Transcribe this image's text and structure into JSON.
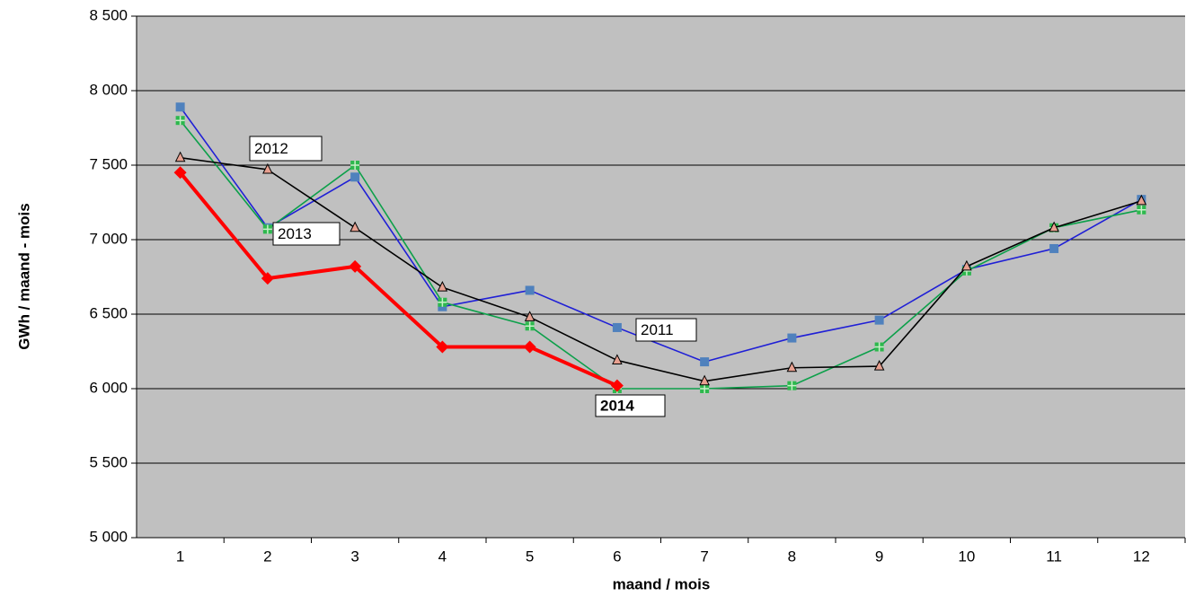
{
  "chart_data": {
    "type": "line",
    "x_label": "maand / mois",
    "y_label": "GWh / maand - mois",
    "categories": [
      "1",
      "2",
      "3",
      "4",
      "5",
      "6",
      "7",
      "8",
      "9",
      "10",
      "11",
      "12"
    ],
    "series": [
      {
        "name": "2011",
        "color": "#1f1fd6",
        "marker": "square",
        "marker_color": "#4f81bd",
        "values": [
          7890,
          7080,
          7420,
          6550,
          6660,
          6410,
          6180,
          6340,
          6460,
          6800,
          6940,
          7270
        ]
      },
      {
        "name": "2012",
        "color": "#000000",
        "marker": "triangle",
        "marker_color": "#e8a090",
        "values": [
          7550,
          7470,
          7080,
          6680,
          6480,
          6190,
          6050,
          6140,
          6150,
          6820,
          7080,
          7260
        ]
      },
      {
        "name": "2013",
        "color": "#0ca04a",
        "marker": "plus-square",
        "marker_color": "#2eb84e",
        "values": [
          7800,
          7070,
          7500,
          6580,
          6420,
          6000,
          6000,
          6020,
          6280,
          6790,
          7080,
          7200
        ]
      },
      {
        "name": "2014",
        "color": "#ff0000",
        "marker": "diamond",
        "marker_color": "#ff0000",
        "values": [
          7450,
          6740,
          6820,
          6280,
          6280,
          6020,
          null,
          null,
          null,
          null,
          null,
          null
        ]
      }
    ],
    "ylim": [
      5000,
      8500
    ],
    "yticks": [
      {
        "value": 5000,
        "label": "5 000"
      },
      {
        "value": 5500,
        "label": "5 500"
      },
      {
        "value": 6000,
        "label": "6 000"
      },
      {
        "value": 6500,
        "label": "6 500"
      },
      {
        "value": 7000,
        "label": "7 000"
      },
      {
        "value": 7500,
        "label": "7 500"
      },
      {
        "value": 8000,
        "label": "8 000"
      },
      {
        "value": 8500,
        "label": "8 500"
      }
    ],
    "grid": true,
    "background": "#c0c0c0"
  }
}
